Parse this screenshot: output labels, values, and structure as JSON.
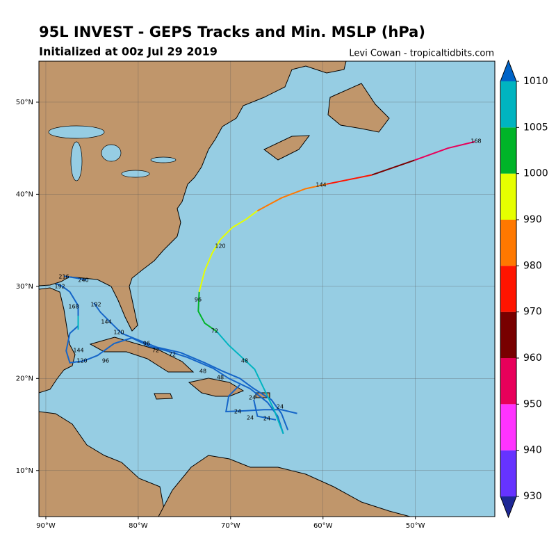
{
  "header": {
    "title": "95L INVEST - GEPS Tracks and Min. MSLP (hPa)",
    "subtitle": "Initialized at 00z Jul 29 2019",
    "credit": "Levi Cowan - tropicaltidbits.com"
  },
  "map": {
    "lonlim": [
      -90.75,
      -41.4
    ],
    "latlim": [
      5.0,
      54.45
    ],
    "lon_ticks": [
      {
        "value": -90,
        "label": "90°W"
      },
      {
        "value": -80,
        "label": "80°W"
      },
      {
        "value": -70,
        "label": "70°W"
      },
      {
        "value": -60,
        "label": "60°W"
      },
      {
        "value": -50,
        "label": "50°W"
      }
    ],
    "lat_ticks": [
      {
        "value": 10,
        "label": "10°N"
      },
      {
        "value": 20,
        "label": "20°N"
      },
      {
        "value": 30,
        "label": "30°N"
      },
      {
        "value": 40,
        "label": "40°N"
      },
      {
        "value": 50,
        "label": "50°N"
      }
    ],
    "tracks": [
      {
        "color": "#1565c8",
        "lon": [
          -64.3,
          -64.9,
          -66.0,
          -67.9,
          -70.2,
          -71.9,
          -74.7,
          -76.9,
          -78.8,
          -80.7,
          -82.6,
          -84.4,
          -85.9,
          -87.4,
          -87.8,
          -87.4,
          -86.5,
          -86.5,
          -87.4,
          -88.2,
          -88.9
        ],
        "lat": [
          14.0,
          15.9,
          17.4,
          18.9,
          20.0,
          21.1,
          22.3,
          23.0,
          23.5,
          24.4,
          23.8,
          22.5,
          21.9,
          21.7,
          23.0,
          24.9,
          25.7,
          27.9,
          29.4,
          30.0,
          30.3
        ]
      },
      {
        "color": "#1565c8",
        "lon": [
          -63.8,
          -64.5,
          -65.6,
          -67.5,
          -69.0,
          -70.9,
          -72.8,
          -75.4,
          -78.0,
          -80.3,
          -81.8,
          -82.9,
          -84.1,
          -84.8
        ],
        "lat": [
          14.4,
          16.2,
          17.7,
          18.9,
          20.0,
          20.8,
          21.7,
          22.8,
          23.4,
          24.3,
          24.9,
          26.0,
          27.2,
          28.2
        ]
      },
      {
        "color": "#1565c8",
        "lon": [
          -62.8,
          -64.5,
          -66.4,
          -68.3,
          -70.5,
          -70.2,
          -69.0
        ],
        "lat": [
          16.2,
          16.6,
          16.6,
          16.5,
          16.4,
          18.1,
          19.3
        ]
      },
      {
        "color": "#1565c8",
        "lon": [
          -67.5,
          -67.1,
          -65.1
        ],
        "lat": [
          17.7,
          15.9,
          15.5
        ]
      },
      {
        "color": "#1565c8",
        "lon": [
          -88.0,
          -86.7,
          -85.6
        ],
        "lat": [
          31.1,
          30.9,
          30.7
        ]
      },
      {
        "color": "#00b4c0",
        "lon": [
          -86.5,
          -86.5
        ],
        "lat": [
          26.8,
          25.3
        ]
      },
      {
        "color": "#00b4c0",
        "lon": [
          -64.3,
          -65.3,
          -66.4,
          -67.4,
          -69.0,
          -70.2,
          -71.5
        ],
        "lat": [
          14.0,
          16.6,
          18.9,
          21.0,
          22.5,
          23.6,
          25.1
        ]
      },
      {
        "color": "#00b428",
        "lon": [
          -71.5,
          -72.8,
          -73.5,
          -73.4
        ],
        "lat": [
          25.1,
          26.0,
          27.3,
          29.4
        ]
      },
      {
        "color": "#e6ff00",
        "lon": [
          -73.4,
          -72.8,
          -72.0,
          -71.1,
          -69.8,
          -68.3,
          -67.1
        ],
        "lat": [
          29.4,
          31.7,
          33.6,
          35.1,
          36.4,
          37.3,
          38.2
        ]
      },
      {
        "color": "#ff7800",
        "lon": [
          -67.1,
          -64.5,
          -61.9,
          -59.6
        ],
        "lat": [
          38.2,
          39.6,
          40.6,
          41.1
        ]
      },
      {
        "color": "#ff1400",
        "lon": [
          -59.6,
          -54.7
        ],
        "lat": [
          41.1,
          42.1
        ]
      },
      {
        "color": "#780000",
        "lon": [
          -54.7,
          -50.1
        ],
        "lat": [
          42.1,
          43.7
        ]
      },
      {
        "color": "#e8005a",
        "lon": [
          -50.1,
          -46.5,
          -43.6
        ],
        "lat": [
          43.7,
          45.0,
          45.7
        ]
      }
    ],
    "hour_labels": [
      "168",
      "144",
      "120",
      "96",
      "72",
      "48",
      "48",
      "48",
      "24",
      "24",
      "24",
      "24",
      "24",
      "216",
      "240",
      "192",
      "168",
      "192",
      "144",
      "120",
      "96",
      "72",
      "72",
      "144",
      "120",
      "96"
    ]
  },
  "colorbar": {
    "ticks": [
      930,
      940,
      950,
      960,
      970,
      980,
      990,
      1000,
      1005,
      1010
    ],
    "colors": [
      "#6633ff",
      "#ff33ff",
      "#e8005a",
      "#780000",
      "#ff1400",
      "#ff7800",
      "#e6ff00",
      "#00b428",
      "#00b4c0"
    ],
    "under": "#1e2896",
    "over": "#0064c8"
  }
}
